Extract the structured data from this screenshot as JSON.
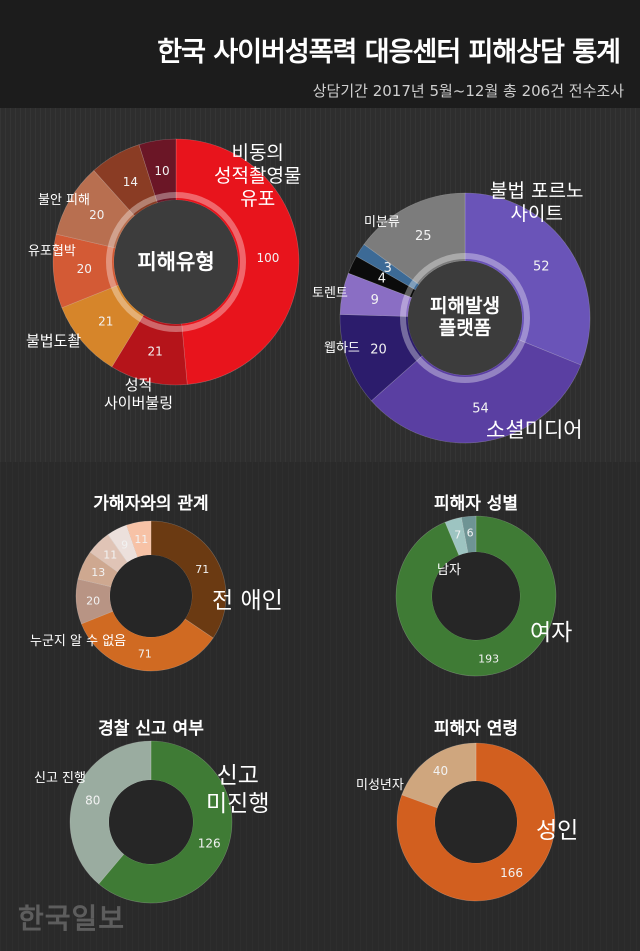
{
  "title": "한국 사이버성폭력 대응센터 피해상담 통계",
  "subtitle": "상담기간 2017년 5월~12월 총 206건 전수조사",
  "logo": "한국일보",
  "chart_data": [
    {
      "type": "pie",
      "id": "damage-type",
      "center_label": "피해유형",
      "slices": [
        {
          "label": "비동의\n성적촬영물\n유포",
          "value": 100,
          "color": "#e8141c"
        },
        {
          "label": "성적\n사이버불링",
          "value": 21,
          "color": "#b5141a"
        },
        {
          "label": "불법도촬",
          "value": 21,
          "color": "#d6852a"
        },
        {
          "label": "유포협박",
          "value": 20,
          "color": "#d35a35"
        },
        {
          "label": "불안 피해",
          "value": 20,
          "color": "#b86f50"
        },
        {
          "label": "",
          "value": 14,
          "color": "#8a3c24"
        },
        {
          "label": "",
          "value": 10,
          "color": "#6b1626"
        }
      ]
    },
    {
      "type": "pie",
      "id": "platform",
      "center_label": "피해발생\n플랫폼",
      "slices": [
        {
          "label": "불법 포르노\n사이트",
          "value": 52,
          "color": "#6a54b8"
        },
        {
          "label": "소셜미디어",
          "value": 54,
          "color": "#5a3fa2"
        },
        {
          "label": "웹하드",
          "value": 20,
          "color": "#2c1c6c"
        },
        {
          "label": "토렌트",
          "value": 9,
          "color": "#8a6ec4"
        },
        {
          "label": "",
          "value": 4,
          "color": "#0b0b0b"
        },
        {
          "label": "",
          "value": 3,
          "color": "#3c6a96"
        },
        {
          "label": "미분류",
          "value": 25,
          "color": "#7c7c7c"
        }
      ]
    },
    {
      "type": "pie",
      "id": "relation",
      "title": "가해자와의 관계",
      "slices": [
        {
          "label": "전 애인",
          "value": 71,
          "color": "#6b3a12"
        },
        {
          "label": "누군지 알 수 없음",
          "value": 71,
          "color": "#d06a22"
        },
        {
          "label": "",
          "value": 20,
          "color": "#b89484"
        },
        {
          "label": "",
          "value": 13,
          "color": "#cea890"
        },
        {
          "label": "",
          "value": 11,
          "color": "#e0c4b6"
        },
        {
          "label": "",
          "value": 9,
          "color": "#ece0dc"
        },
        {
          "label": "",
          "value": 11,
          "color": "#f7c2a6"
        }
      ]
    },
    {
      "type": "pie",
      "id": "gender",
      "title": "피해자 성별",
      "slices": [
        {
          "label": "여자",
          "value": 193,
          "color": "#3f7b35"
        },
        {
          "label": "남자",
          "value": 7,
          "color": "#9dc4c1"
        },
        {
          "label": "",
          "value": 6,
          "color": "#6e9494"
        }
      ]
    },
    {
      "type": "pie",
      "id": "police",
      "title": "경찰 신고 여부",
      "slices": [
        {
          "label": "신고\n미진행",
          "value": 126,
          "color": "#3f7b35"
        },
        {
          "label": "신고 진행",
          "value": 80,
          "color": "#9aaca0"
        }
      ]
    },
    {
      "type": "pie",
      "id": "age",
      "title": "피해자 연령",
      "slices": [
        {
          "label": "성인",
          "value": 166,
          "color": "#d25f1f"
        },
        {
          "label": "미성년자",
          "value": 40,
          "color": "#cfa67e"
        }
      ]
    }
  ]
}
